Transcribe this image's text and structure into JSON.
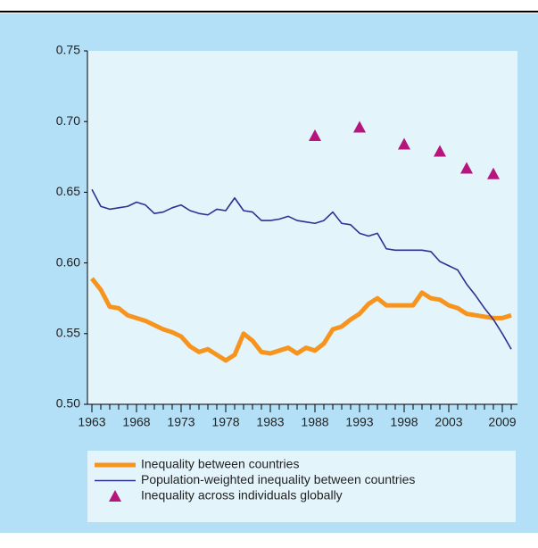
{
  "chart_data": {
    "type": "line",
    "x": [
      1963,
      1964,
      1965,
      1966,
      1967,
      1968,
      1969,
      1970,
      1971,
      1972,
      1973,
      1974,
      1975,
      1976,
      1977,
      1978,
      1979,
      1980,
      1981,
      1982,
      1983,
      1984,
      1985,
      1986,
      1987,
      1988,
      1989,
      1990,
      1991,
      1992,
      1993,
      1994,
      1995,
      1996,
      1997,
      1998,
      1999,
      2000,
      2001,
      2002,
      2003,
      2004,
      2005,
      2006,
      2007,
      2008,
      2009,
      2010
    ],
    "series": [
      {
        "name": "Inequality between countries",
        "color": "#f7941d",
        "width": 5,
        "values": [
          0.589,
          0.581,
          0.569,
          0.568,
          0.563,
          0.561,
          0.559,
          0.556,
          0.553,
          0.551,
          0.548,
          0.541,
          0.537,
          0.539,
          0.535,
          0.531,
          0.535,
          0.55,
          0.545,
          0.537,
          0.536,
          0.538,
          0.54,
          0.536,
          0.54,
          0.538,
          0.543,
          0.553,
          0.555,
          0.56,
          0.564,
          0.571,
          0.575,
          0.57,
          0.57,
          0.57,
          0.57,
          0.579,
          0.575,
          0.574,
          0.57,
          0.568,
          0.564,
          0.563,
          0.562,
          0.561,
          0.561,
          0.563
        ]
      },
      {
        "name": "Population-weighted inequality between countries",
        "color": "#2e3192",
        "width": 1.6,
        "values": [
          0.652,
          0.64,
          0.638,
          0.639,
          0.64,
          0.643,
          0.641,
          0.635,
          0.636,
          0.639,
          0.641,
          0.637,
          0.635,
          0.634,
          0.638,
          0.637,
          0.646,
          0.637,
          0.636,
          0.63,
          0.63,
          0.631,
          0.633,
          0.63,
          0.629,
          0.628,
          0.63,
          0.636,
          0.628,
          0.627,
          0.621,
          0.619,
          0.621,
          0.61,
          0.609,
          0.609,
          0.609,
          0.609,
          0.608,
          0.601,
          0.598,
          0.595,
          0.585,
          0.577,
          0.568,
          0.56,
          0.55,
          0.539
        ]
      }
    ],
    "points": {
      "name": "Inequality across individuals globally",
      "color": "#b5157d",
      "x": [
        1988,
        1993,
        1998,
        2002,
        2005,
        2008
      ],
      "values": [
        0.69,
        0.696,
        0.684,
        0.679,
        0.667,
        0.663
      ]
    },
    "xlim": [
      1962.5,
      2010.7
    ],
    "ylim": [
      0.5,
      0.75
    ],
    "xticks": [
      1963,
      1968,
      1973,
      1978,
      1983,
      1988,
      1993,
      1998,
      2003,
      2009
    ],
    "yticks": [
      {
        "value": 0.5,
        "label": "0.50"
      },
      {
        "value": 0.55,
        "label": "0.55"
      },
      {
        "value": 0.6,
        "label": "0.60"
      },
      {
        "value": 0.65,
        "label": "0.65"
      },
      {
        "value": 0.7,
        "label": "0.70"
      },
      {
        "value": 0.75,
        "label": "0.75"
      }
    ]
  }
}
